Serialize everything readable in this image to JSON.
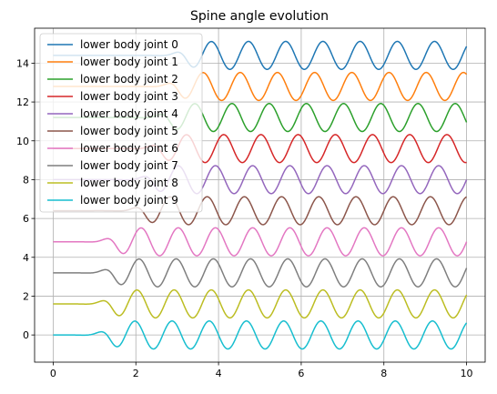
{
  "chart_data": {
    "type": "line",
    "title": "Spine angle evolution",
    "xlabel": "",
    "ylabel": "",
    "xlim": [
      -0.45,
      10.45
    ],
    "ylim": [
      -1.4,
      15.8
    ],
    "xticks": [
      0,
      2,
      4,
      6,
      8,
      10
    ],
    "yticks": [
      0,
      2,
      4,
      6,
      8,
      10,
      12,
      14
    ],
    "grid": true,
    "legend_position": "top-left",
    "series": [
      {
        "name": "lower body joint 0",
        "color": "#1f77b4",
        "offset": 14.4,
        "onset": 3.15,
        "amplitude": 0.72,
        "period": 0.9
      },
      {
        "name": "lower body joint 1",
        "color": "#ff7f0e",
        "offset": 12.8,
        "onset": 2.95,
        "amplitude": 0.72,
        "period": 0.9
      },
      {
        "name": "lower body joint 2",
        "color": "#2ca02c",
        "offset": 11.2,
        "onset": 2.75,
        "amplitude": 0.72,
        "period": 0.9
      },
      {
        "name": "lower body joint 3",
        "color": "#d62728",
        "offset": 9.6,
        "onset": 2.55,
        "amplitude": 0.72,
        "period": 0.9
      },
      {
        "name": "lower body joint 4",
        "color": "#9467bd",
        "offset": 8.0,
        "onset": 2.35,
        "amplitude": 0.72,
        "period": 0.9
      },
      {
        "name": "lower body joint 5",
        "color": "#8c564b",
        "offset": 6.4,
        "onset": 2.15,
        "amplitude": 0.72,
        "period": 0.9
      },
      {
        "name": "lower body joint 6",
        "color": "#e377c2",
        "offset": 4.8,
        "onset": 1.45,
        "amplitude": 0.72,
        "period": 0.9
      },
      {
        "name": "lower body joint 7",
        "color": "#7f7f7f",
        "offset": 3.2,
        "onset": 1.4,
        "amplitude": 0.72,
        "period": 0.9
      },
      {
        "name": "lower body joint 8",
        "color": "#bcbd22",
        "offset": 1.6,
        "onset": 1.35,
        "amplitude": 0.72,
        "period": 0.9
      },
      {
        "name": "lower body joint 9",
        "color": "#17becf",
        "offset": 0.0,
        "onset": 1.3,
        "amplitude": 0.72,
        "period": 0.9
      }
    ]
  }
}
